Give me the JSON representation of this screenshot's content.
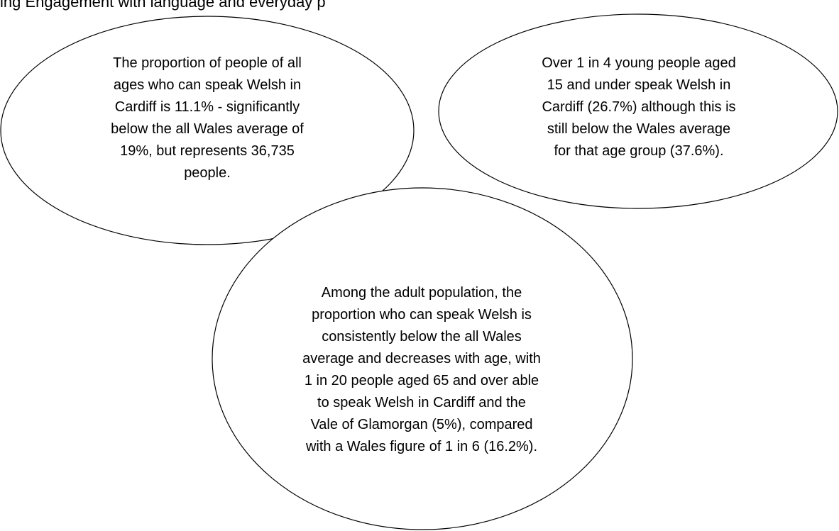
{
  "header": {
    "text": "ing Engagement with language and everyday p"
  },
  "bubbles": [
    {
      "lines": [
        "The proportion of people of all",
        "ages who can speak Welsh in",
        "Cardiff is 11.1% - significantly",
        "below the all Wales average of",
        "19%, but represents 36,735",
        "people."
      ]
    },
    {
      "lines": [
        "Over 1 in 4 young people aged",
        "15 and under speak Welsh in",
        "Cardiff (26.7%) although this is",
        "still below the Wales average",
        "for that age group (37.6%)."
      ]
    },
    {
      "lines": [
        "Among the adult population, the",
        "proportion who can speak Welsh is",
        "consistently below the all Wales",
        "average and decreases with age, with",
        "1 in 20 people aged 65 and over able",
        "to speak Welsh in Cardiff and the",
        "Vale of Glamorgan (5%), compared",
        "with a Wales figure of 1 in 6 (16.2%)."
      ]
    }
  ]
}
